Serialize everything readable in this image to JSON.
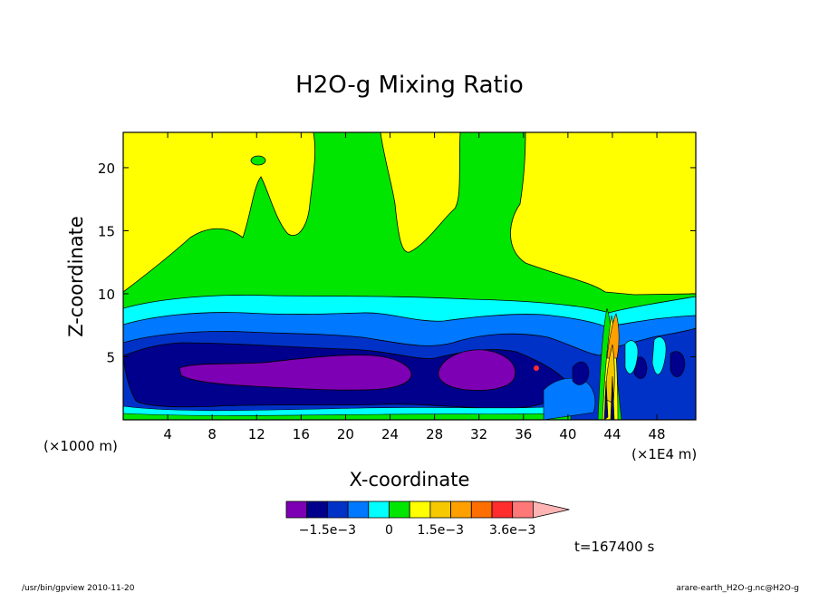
{
  "chart_data": {
    "type": "heatmap",
    "title": "H2O-g Mixing Ratio",
    "xlabel": "X-coordinate",
    "ylabel": "Z-coordinate",
    "x_unit_left": "(×1000 m)",
    "x_unit_right": "(×1E4 m)",
    "xlim": [
      0,
      51.5
    ],
    "ylim": [
      0,
      22.8
    ],
    "x_ticks": [
      "4",
      "8",
      "12",
      "16",
      "20",
      "24",
      "28",
      "32",
      "36",
      "40",
      "44",
      "48"
    ],
    "x_tick_values": [
      4,
      8,
      12,
      16,
      20,
      24,
      28,
      32,
      36,
      40,
      44,
      48
    ],
    "y_ticks": [
      "5",
      "10",
      "15",
      "20"
    ],
    "y_tick_values": [
      5,
      10,
      15,
      20
    ],
    "grid": false,
    "contour_levels_colors": [
      "#7d00b4",
      "#00008c",
      "#0032c8",
      "#0078ff",
      "#00ffff",
      "#00e600",
      "#ffff00",
      "#f5c800",
      "#ffa000",
      "#ff6e00",
      "#ff2d2d",
      "#ff7878",
      "#ffb4b4"
    ],
    "colorbar_labels": [
      "−1.5e−3",
      "0",
      "1.5e−3",
      "3.6e−3"
    ],
    "colorbar_label_index": [
      2,
      5,
      7.5,
      11
    ],
    "time_label": "t=167400 s",
    "regions": [
      {
        "name": "upper-layer",
        "value_band": "yellow",
        "z_range": [
          10,
          22.8
        ]
      },
      {
        "name": "green-plumes",
        "value_band": "green",
        "x_centers": [
          12,
          18,
          31
        ]
      },
      {
        "name": "minimum-core",
        "value_band": "purple",
        "x_range": [
          5,
          35
        ],
        "z_range": [
          3,
          5
        ]
      },
      {
        "name": "high-spike",
        "value_band": "orange",
        "x": 43.5,
        "z_range": [
          1,
          9
        ]
      }
    ]
  },
  "footer": {
    "left": "/usr/bin/gpview  2010-11-20",
    "right": "arare-earth_H2O-g.nc@H2O-g"
  }
}
